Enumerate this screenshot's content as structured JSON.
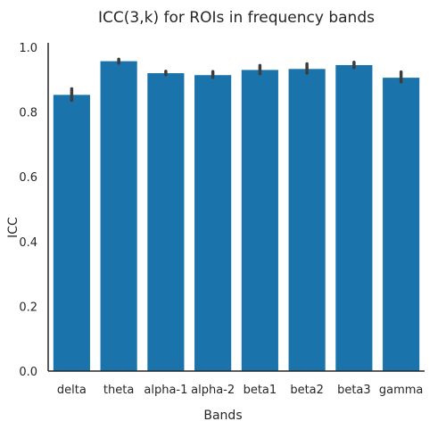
{
  "chart_data": {
    "type": "bar",
    "title": "ICC(3,k) for ROIs in frequency bands",
    "xlabel": "Bands",
    "ylabel": "ICC",
    "categories": [
      "delta",
      "theta",
      "alpha-1",
      "alpha-2",
      "beta1",
      "beta2",
      "beta3",
      "gamma"
    ],
    "values": [
      0.853,
      0.957,
      0.92,
      0.914,
      0.93,
      0.933,
      0.945,
      0.906
    ],
    "error_low": [
      0.836,
      0.951,
      0.915,
      0.907,
      0.918,
      0.92,
      0.937,
      0.893
    ],
    "error_high": [
      0.872,
      0.963,
      0.926,
      0.925,
      0.944,
      0.949,
      0.954,
      0.924
    ],
    "ylim": [
      0,
      1.0
    ],
    "yticks": [
      "0.0",
      "0.2",
      "0.4",
      "0.6",
      "0.8",
      "1.0"
    ],
    "grid": false,
    "bar_color": "#1a74ab",
    "error_color": "#3d3d3d"
  }
}
